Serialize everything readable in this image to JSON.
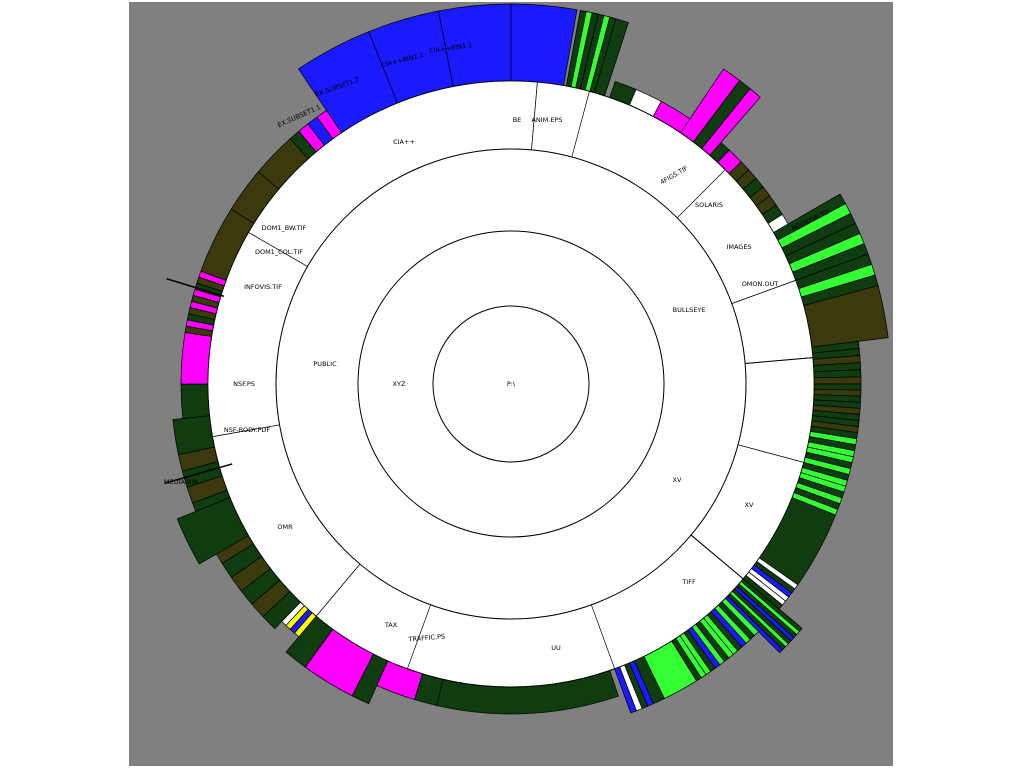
{
  "colors": {
    "background": "#808080",
    "folder": "#ffffff",
    "dark_green": "#0f3d0f",
    "olive": "#3a3a0c",
    "magenta": "#ff00ff",
    "blue": "#1a1aff",
    "bright_green": "#33ff33",
    "yellow": "#ffff00"
  },
  "hierarchy": {
    "root": "P:\\",
    "level1": "XYZ",
    "folders": [
      "PUBLIC",
      "BULLSEYE",
      "XV",
      "TIFF",
      "TAX",
      "OMR",
      "CIA++",
      "BE",
      "SOLARIS",
      "IMAGES"
    ],
    "files": [
      "CIA++BIN1.1",
      "CIA++BIN1.2",
      "EX.SUBSET1.2",
      "EX.SUBSET1.1",
      "ANIM.EPS",
      "4FIGS.TIF",
      "BOOKDIR.TIF",
      "DOM1_BW.TIF",
      "DOM1_COL.TIF",
      "INFOVIS.TIF",
      "OMON.OUT",
      "NSF.PS",
      "NSF-BODY.PDF",
      "MEDIA.BIN",
      "TRAFFIC.PS",
      "UU",
      "XV"
    ]
  }
}
